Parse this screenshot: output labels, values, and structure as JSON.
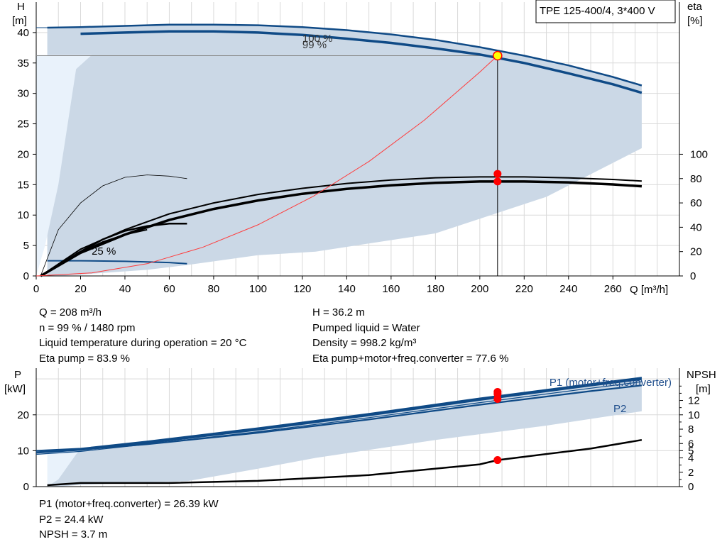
{
  "chart_data": [
    {
      "type": "line",
      "title": "TPE 125-400/4, 3*400 V",
      "xlabel": "Q [m³/h]",
      "ylabel": "H",
      "ylabel_unit": "[m]",
      "y2label": "eta",
      "y2label_unit": "[%]",
      "xlim": [
        0,
        290
      ],
      "ylim": [
        0,
        45
      ],
      "y2lim": [
        0,
        225
      ],
      "xticks": [
        "0",
        "20",
        "40",
        "60",
        "80",
        "100",
        "120",
        "140",
        "160",
        "180",
        "200",
        "220",
        "240",
        "260"
      ],
      "yticks": [
        "0",
        "5",
        "10",
        "15",
        "20",
        "25",
        "30",
        "35",
        "40"
      ],
      "y2ticks": [
        "0",
        "20",
        "40",
        "60",
        "80",
        "100"
      ],
      "curve_labels": [
        "100 %",
        "99 %",
        "25 %"
      ],
      "grid": true,
      "operating_point": {
        "Q": 208,
        "H": 36.2,
        "eta_pump": 83.9,
        "eta_total": 77.6
      },
      "series": [
        {
          "axis": "H",
          "x": [
            5,
            20,
            40,
            60,
            80,
            100,
            120,
            140,
            160,
            180,
            200,
            220,
            240,
            260,
            273
          ],
          "y": [
            40.8,
            40.9,
            41.1,
            41.3,
            41.3,
            41.2,
            40.9,
            40.4,
            39.7,
            38.8,
            37.6,
            36.2,
            34.6,
            32.7,
            31.3
          ]
        },
        {
          "axis": "H",
          "x": [
            20,
            40,
            60,
            80,
            100,
            120,
            140,
            160,
            180,
            200,
            220,
            240,
            260,
            273
          ],
          "y": [
            39.8,
            40.0,
            40.2,
            40.2,
            40.0,
            39.6,
            39.0,
            38.3,
            37.4,
            36.4,
            35.0,
            33.3,
            31.5,
            30.1
          ]
        },
        {
          "axis": "H",
          "x": [
            5,
            20,
            40,
            60,
            68
          ],
          "y": [
            2.5,
            2.5,
            2.4,
            2.2,
            2.0
          ]
        },
        {
          "axis": "eta",
          "x": [
            2,
            20,
            40,
            60,
            80,
            100,
            120,
            140,
            160,
            180,
            200,
            220,
            240,
            260,
            273
          ],
          "y": [
            0,
            22,
            38,
            51,
            60,
            67,
            72,
            76,
            78.8,
            80.7,
            81.4,
            81.4,
            80.6,
            79.3,
            78.0
          ]
        },
        {
          "axis": "eta",
          "x": [
            2,
            20,
            40,
            60,
            80,
            100,
            120,
            140,
            160,
            180,
            200,
            220,
            240,
            260,
            273
          ],
          "y": [
            0,
            19,
            34,
            46,
            55,
            62,
            67.5,
            71.5,
            74.5,
            76.5,
            77.6,
            77.6,
            76.9,
            75.2,
            73.7
          ]
        },
        {
          "axis": "eta",
          "x": [
            2,
            10,
            20,
            30,
            40,
            50,
            60,
            68
          ],
          "y": [
            0,
            38,
            60,
            74,
            81,
            83,
            82,
            80
          ]
        },
        {
          "axis": "eta",
          "x": [
            18,
            30,
            40,
            50,
            60,
            68
          ],
          "y": [
            18,
            30,
            37,
            41,
            43,
            43
          ]
        },
        {
          "axis": "H",
          "x": [
            0,
            25,
            50,
            75,
            100,
            125,
            150,
            175,
            200,
            208
          ],
          "y": [
            0,
            0.5,
            2,
            4.7,
            8.4,
            13.1,
            18.8,
            25.6,
            33.5,
            36.2
          ]
        },
        {
          "axis": "H",
          "x": [
            0,
            4,
            10,
            18,
            25,
            50,
            100,
            150,
            200,
            250,
            273
          ],
          "y": [
            0,
            5,
            15,
            34,
            36.3,
            36.3,
            36.3,
            36.3,
            36.3,
            36.3,
            36.3
          ]
        },
        {
          "axis": "H",
          "x": [
            208,
            215,
            240,
            262,
            273
          ],
          "y": [
            36.2,
            20,
            18,
            20,
            21
          ]
        },
        {
          "axis": "H",
          "x": [
            273,
            230,
            180,
            126,
            100,
            68,
            50,
            30,
            20,
            10,
            5
          ],
          "y": [
            21,
            13,
            7,
            4,
            3.4,
            1.8,
            1,
            0.5,
            0.2,
            0,
            0
          ]
        }
      ],
      "points": [
        {
          "axis": "H",
          "x": 208,
          "y": 36.2,
          "style": "operating"
        },
        {
          "axis": "eta",
          "x": 208,
          "y": 83.9
        },
        {
          "axis": "eta",
          "x": 208,
          "y": 77.6
        }
      ]
    },
    {
      "type": "line",
      "title": "",
      "xlim": [
        0,
        290
      ],
      "ylim": [
        0,
        33
      ],
      "y2lim": [
        0,
        16.5
      ],
      "ylabel": "P",
      "ylabel_unit": "[kW]",
      "y2label": "NPSH",
      "y2label_unit": "[m]",
      "yticks": [
        "0",
        "10",
        "20"
      ],
      "y2ticks": [
        "0",
        "2",
        "4",
        "5",
        "6",
        "8",
        "10",
        "12"
      ],
      "legend": [
        "P1 (motor+freq.converter)",
        "P2"
      ],
      "grid": true,
      "series": [
        {
          "axis": "P",
          "x": [
            0,
            20,
            50,
            100,
            150,
            200,
            250,
            273
          ],
          "y": [
            10.0,
            10.6,
            12.6,
            16.3,
            20.3,
            24.6,
            28.6,
            30.4
          ]
        },
        {
          "axis": "P",
          "x": [
            0,
            20,
            50,
            100,
            150,
            200,
            250,
            273
          ],
          "y": [
            9.5,
            10.3,
            12.2,
            15.9,
            19.9,
            24.2,
            28.2,
            30.0
          ]
        },
        {
          "axis": "P",
          "x": [
            0,
            20,
            50,
            100,
            150,
            200,
            250,
            273
          ],
          "y": [
            9.0,
            9.8,
            11.8,
            15.3,
            19.2,
            23.4,
            27.4,
            29.2
          ]
        },
        {
          "axis": "P",
          "x": [
            20,
            50,
            100,
            150,
            200,
            250,
            273
          ],
          "y": [
            10.3,
            11.8,
            15.0,
            18.7,
            22.8,
            26.6,
            28.2
          ]
        },
        {
          "axis": "NPSH",
          "x": [
            5,
            20,
            60,
            100,
            150,
            200,
            208,
            250,
            273
          ],
          "y": [
            0.2,
            0.5,
            0.5,
            0.8,
            1.6,
            3.1,
            3.7,
            5.3,
            6.5
          ]
        }
      ],
      "points": [
        {
          "axis": "P",
          "x": 208,
          "y": 26.39
        },
        {
          "axis": "P",
          "x": 208,
          "y": 25.8
        },
        {
          "axis": "P",
          "x": 208,
          "y": 24.4
        },
        {
          "axis": "NPSH",
          "x": 208,
          "y": 3.7
        }
      ]
    }
  ],
  "info": {
    "top_left": [
      "Q = 208 m³/h",
      "n = 99 % / 1480 rpm",
      "Liquid temperature during operation = 20 °C",
      "Eta pump = 83.9 %"
    ],
    "top_right": [
      "H = 36.2 m",
      "Pumped liquid = Water",
      "Density = 998.2 kg/m³",
      "Eta pump+motor+freq.converter = 77.6 %"
    ],
    "bottom": [
      "P1 (motor+freq.converter) = 26.39 kW",
      "P2 = 24.4 kW",
      "NPSH = 3.7 m"
    ]
  },
  "colors": {
    "curve_blue": "#0f4a86",
    "area_fill": "#cbd8e6",
    "area_light": "#e9f2fb",
    "grid": "#d9d9d9",
    "marker": "#ff0000",
    "system_curve": "#ff3b3b",
    "operating_marker_fill": "#ffff00",
    "legend_text": "#1f4e8c"
  }
}
